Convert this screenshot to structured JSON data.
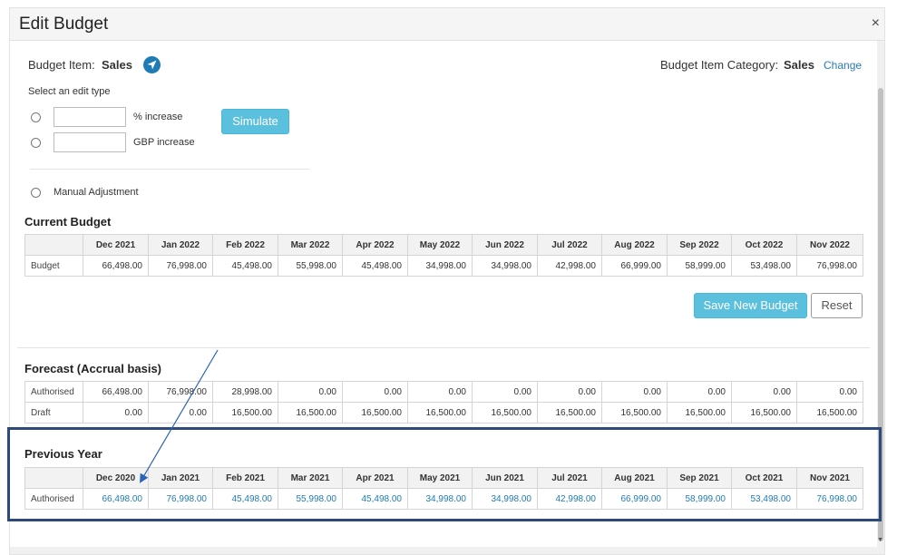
{
  "modal": {
    "title": "Edit Budget",
    "close_glyph": "×"
  },
  "budget_item": {
    "label": "Budget Item:",
    "value": "Sales",
    "icon": "navigate-icon"
  },
  "budget_category": {
    "label": "Budget Item Category:",
    "value": "Sales",
    "change_link": "Change"
  },
  "edit_type": {
    "prompt": "Select an edit type",
    "percent_label": "% increase",
    "gbp_label": "GBP  increase",
    "percent_value": "",
    "gbp_value": "",
    "manual_label": "Manual Adjustment",
    "simulate_button": "Simulate"
  },
  "current_budget": {
    "title": "Current Budget",
    "columns": [
      "Dec 2021",
      "Jan 2022",
      "Feb 2022",
      "Mar 2022",
      "Apr 2022",
      "May 2022",
      "Jun 2022",
      "Jul 2022",
      "Aug 2022",
      "Sep 2022",
      "Oct 2022",
      "Nov 2022"
    ],
    "rows": [
      {
        "label": "Budget",
        "values": [
          "66,498.00",
          "76,998.00",
          "45,498.00",
          "55,998.00",
          "45,498.00",
          "34,998.00",
          "34,998.00",
          "42,998.00",
          "66,999.00",
          "58,999.00",
          "53,498.00",
          "76,998.00"
        ]
      }
    ]
  },
  "actions": {
    "save_button": "Save New Budget",
    "reset_button": "Reset"
  },
  "forecast": {
    "title": "Forecast (Accrual basis)",
    "rows": [
      {
        "label": "Authorised",
        "values": [
          "66,498.00",
          "76,998.00",
          "28,998.00",
          "0.00",
          "0.00",
          "0.00",
          "0.00",
          "0.00",
          "0.00",
          "0.00",
          "0.00",
          "0.00"
        ]
      },
      {
        "label": "Draft",
        "values": [
          "0.00",
          "0.00",
          "16,500.00",
          "16,500.00",
          "16,500.00",
          "16,500.00",
          "16,500.00",
          "16,500.00",
          "16,500.00",
          "16,500.00",
          "16,500.00",
          "16,500.00"
        ]
      }
    ]
  },
  "previous_year": {
    "title": "Previous Year",
    "columns": [
      "Dec 2020",
      "Jan 2021",
      "Feb 2021",
      "Mar 2021",
      "Apr 2021",
      "May 2021",
      "Jun 2021",
      "Jul 2021",
      "Aug 2021",
      "Sep 2021",
      "Oct 2021",
      "Nov 2021"
    ],
    "rows": [
      {
        "label": "Authorised",
        "values": [
          "66,498.00",
          "76,998.00",
          "45,498.00",
          "55,998.00",
          "45,498.00",
          "34,998.00",
          "34,998.00",
          "42,998.00",
          "66,999.00",
          "58,999.00",
          "53,498.00",
          "76,998.00"
        ]
      }
    ]
  },
  "colors": {
    "accent": "#5bc0de",
    "link": "#1f7bb6",
    "highlight_border": "#2e4a7a"
  }
}
